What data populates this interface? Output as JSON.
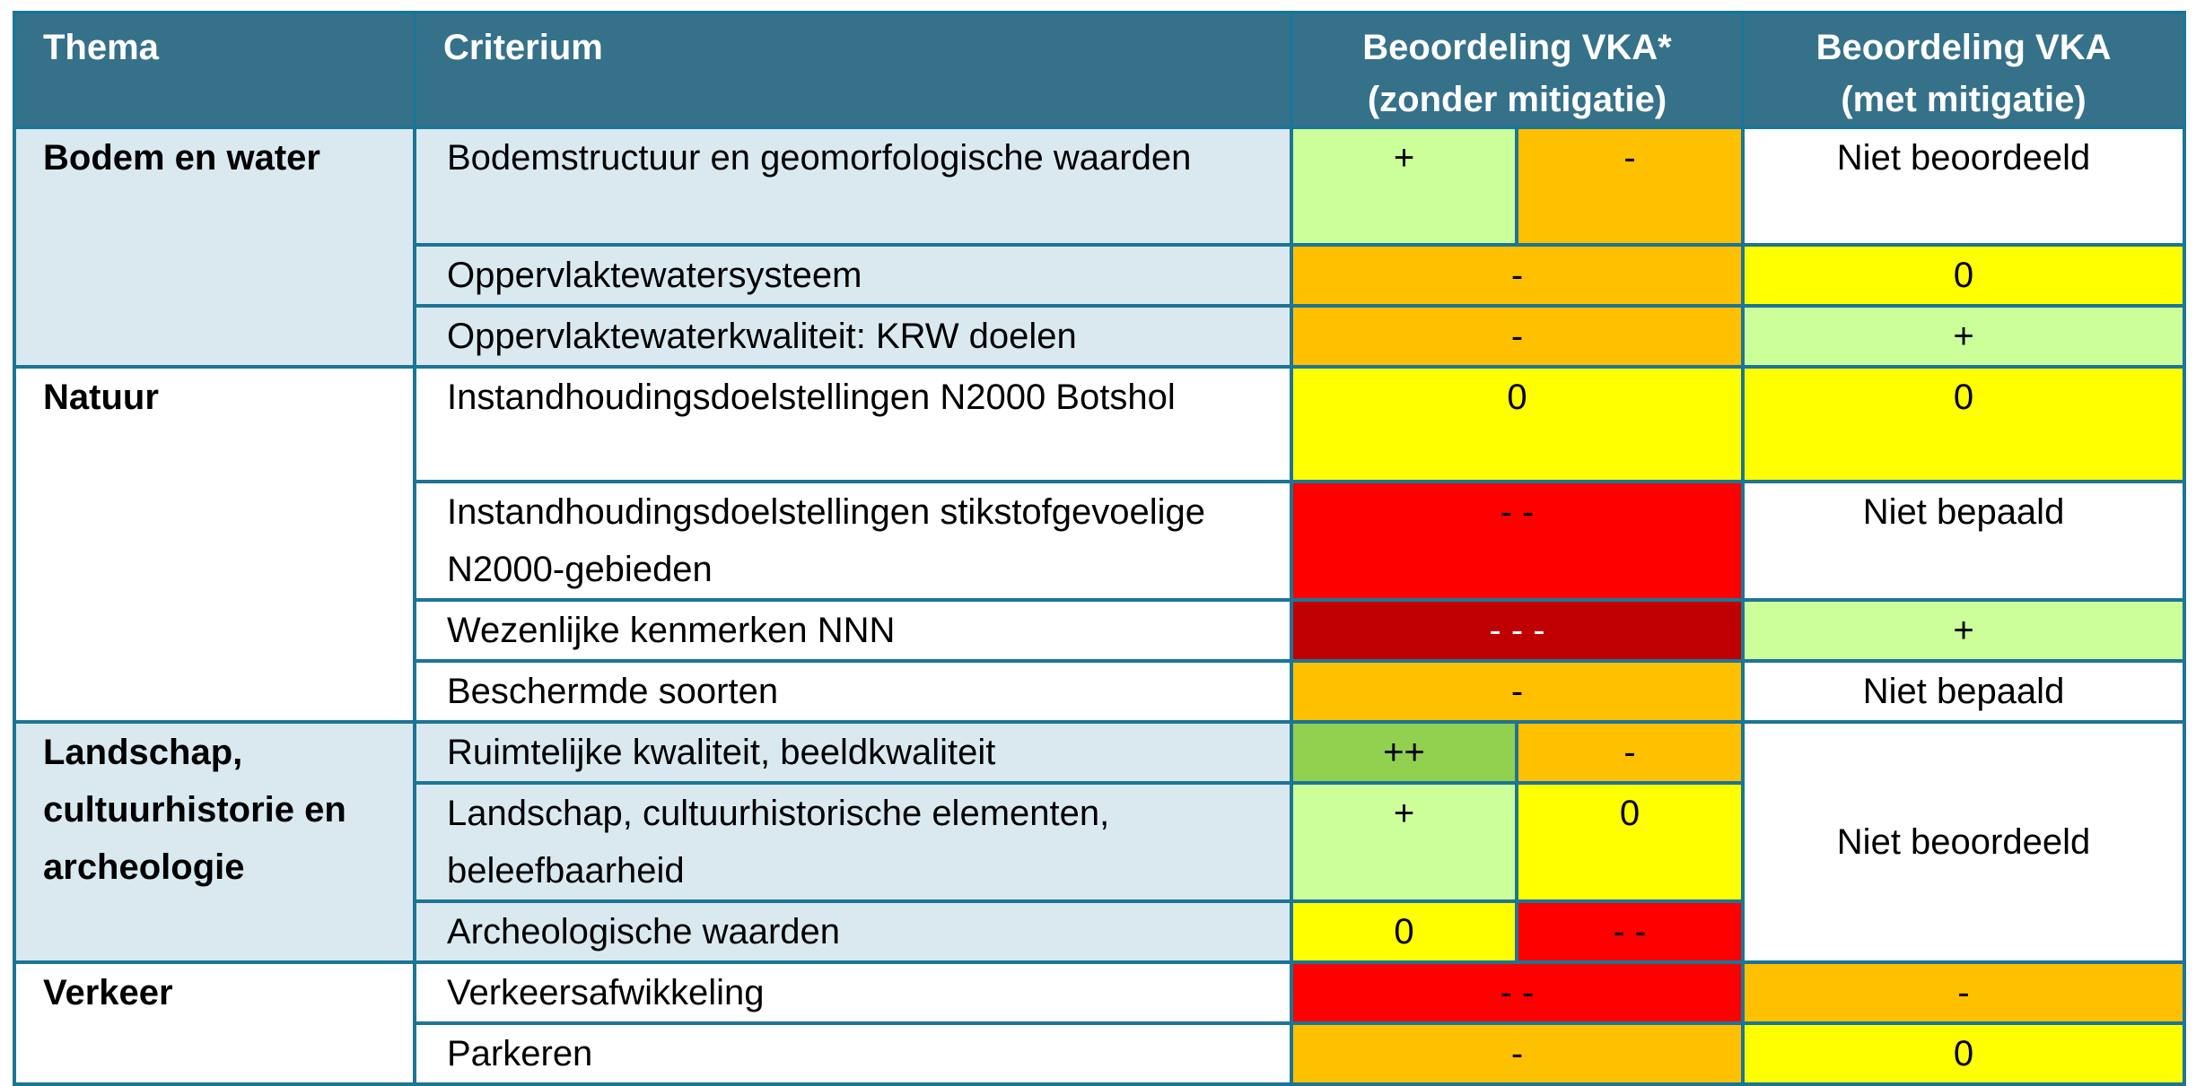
{
  "header": {
    "thema": "Thema",
    "criterium": "Criterium",
    "zonder_line1": "Beoordeling VKA*",
    "zonder_line2": "(zonder mitigatie)",
    "met_line1": "Beoordeling VKA",
    "met_line2": "(met mitigatie)"
  },
  "colors": {
    "header": "#36718a",
    "border": "#1d7596",
    "theme_bg": "#dae9f0",
    "++": "#92d050",
    "+": "#ccff99",
    "0": "#ffff00",
    "-": "#ffc000",
    "--": "#ff0000",
    "---": "#c00000"
  },
  "themes": [
    "Bodem en water",
    "Natuur",
    "Landschap, cultuurhistorie en archeologie",
    "Verkeer"
  ],
  "rows": [
    {
      "criterium": "Bodemstructuur en geomorfologische waarden",
      "zonder": [
        "+",
        "-"
      ],
      "met": "Niet beoordeeld"
    },
    {
      "criterium": "Oppervlaktewatersysteem",
      "zonder": [
        "-"
      ],
      "met": "0"
    },
    {
      "criterium": "Oppervlaktewaterkwaliteit: KRW doelen",
      "zonder": [
        "-"
      ],
      "met": "+"
    },
    {
      "criterium": "Instandhoudingsdoelstellingen N2000 Botshol",
      "zonder": [
        "0"
      ],
      "met": "0"
    },
    {
      "criterium": "Instandhoudingsdoelstellingen stikstofgevoelige N2000-gebieden",
      "zonder": [
        "- -"
      ],
      "met": "Niet bepaald"
    },
    {
      "criterium": "Wezenlijke kenmerken NNN",
      "zonder": [
        "- - -"
      ],
      "met": "+"
    },
    {
      "criterium": "Beschermde soorten",
      "zonder": [
        "-"
      ],
      "met": "Niet bepaald"
    },
    {
      "criterium": "Ruimtelijke kwaliteit, beeldkwaliteit",
      "zonder": [
        "++",
        "-"
      ],
      "met": "Niet beoordeeld"
    },
    {
      "criterium": "Landschap, cultuurhistorische elementen, beleefbaarheid",
      "zonder": [
        "+",
        "0"
      ]
    },
    {
      "criterium": "Archeologische waarden",
      "zonder": [
        "0",
        "- -"
      ]
    },
    {
      "criterium": "Verkeersafwikkeling",
      "zonder": [
        "- -"
      ],
      "met": "-"
    },
    {
      "criterium": "Parkeren",
      "zonder": [
        "-"
      ],
      "met": "0"
    }
  ]
}
